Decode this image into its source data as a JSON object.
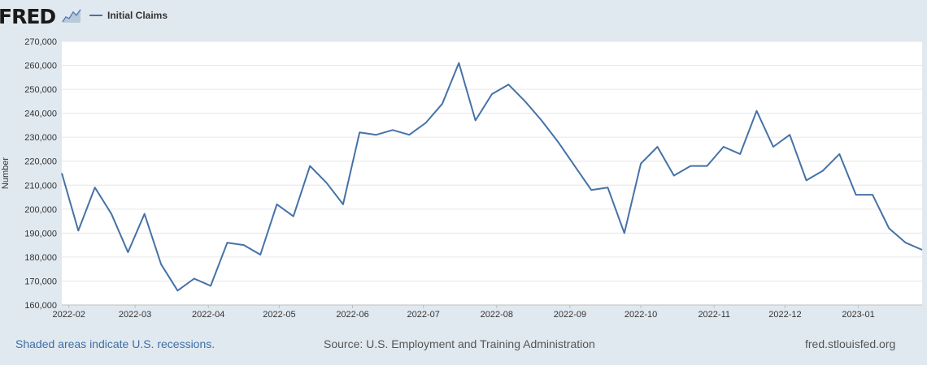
{
  "header": {
    "logo_text": "FRED",
    "legend_label": "Initial Claims",
    "series_color": "#4572a7"
  },
  "footer": {
    "recession_note": "Shaded areas indicate U.S. recessions.",
    "source": "Source: U.S. Employment and Training Administration",
    "site": "fred.stlouisfed.org"
  },
  "chart_data": {
    "type": "line",
    "title": "",
    "xlabel": "",
    "ylabel": "Number",
    "ylim": [
      160000,
      270000
    ],
    "yticks": [
      160000,
      170000,
      180000,
      190000,
      200000,
      210000,
      220000,
      230000,
      240000,
      250000,
      260000,
      270000
    ],
    "ytick_labels": [
      "160,000",
      "170,000",
      "180,000",
      "190,000",
      "200,000",
      "210,000",
      "220,000",
      "230,000",
      "240,000",
      "250,000",
      "260,000",
      "270,000"
    ],
    "xlim": [
      "2022-01-29",
      "2023-01-28"
    ],
    "xtick_labels": [
      "2022-02",
      "2022-03",
      "2022-04",
      "2022-05",
      "2022-06",
      "2022-07",
      "2022-08",
      "2022-09",
      "2022-10",
      "2022-11",
      "2022-12",
      "2023-01"
    ],
    "xtick_dates": [
      "2022-02-01",
      "2022-03-01",
      "2022-04-01",
      "2022-05-01",
      "2022-06-01",
      "2022-07-01",
      "2022-08-01",
      "2022-09-01",
      "2022-10-01",
      "2022-11-01",
      "2022-12-01",
      "2023-01-01"
    ],
    "grid": true,
    "legend_position": "top-left",
    "series": [
      {
        "name": "Initial Claims",
        "color": "#4572a7",
        "x": [
          "2022-01-29",
          "2022-02-05",
          "2022-02-12",
          "2022-02-19",
          "2022-02-26",
          "2022-03-05",
          "2022-03-12",
          "2022-03-19",
          "2022-03-26",
          "2022-04-02",
          "2022-04-09",
          "2022-04-16",
          "2022-04-23",
          "2022-04-30",
          "2022-05-07",
          "2022-05-14",
          "2022-05-21",
          "2022-05-28",
          "2022-06-04",
          "2022-06-11",
          "2022-06-18",
          "2022-06-25",
          "2022-07-02",
          "2022-07-09",
          "2022-07-16",
          "2022-07-23",
          "2022-07-30",
          "2022-08-06",
          "2022-08-13",
          "2022-08-20",
          "2022-08-27",
          "2022-09-03",
          "2022-09-10",
          "2022-09-17",
          "2022-09-24",
          "2022-10-01",
          "2022-10-08",
          "2022-10-15",
          "2022-10-22",
          "2022-10-29",
          "2022-11-05",
          "2022-11-12",
          "2022-11-19",
          "2022-11-26",
          "2022-12-03",
          "2022-12-10",
          "2022-12-17",
          "2022-12-24",
          "2022-12-31",
          "2023-01-07",
          "2023-01-14",
          "2023-01-21",
          "2023-01-28"
        ],
        "values": [
          215000,
          191000,
          209000,
          198000,
          182000,
          198000,
          177000,
          166000,
          171000,
          168000,
          186000,
          185000,
          181000,
          202000,
          197000,
          218000,
          211000,
          202000,
          232000,
          231000,
          233000,
          231000,
          236000,
          244000,
          261000,
          237000,
          248000,
          252000,
          245000,
          237000,
          228000,
          218000,
          208000,
          209000,
          190000,
          219000,
          226000,
          214000,
          218000,
          218000,
          226000,
          223000,
          241000,
          226000,
          231000,
          212000,
          216000,
          223000,
          206000,
          206000,
          192000,
          186000,
          183000
        ]
      }
    ]
  }
}
